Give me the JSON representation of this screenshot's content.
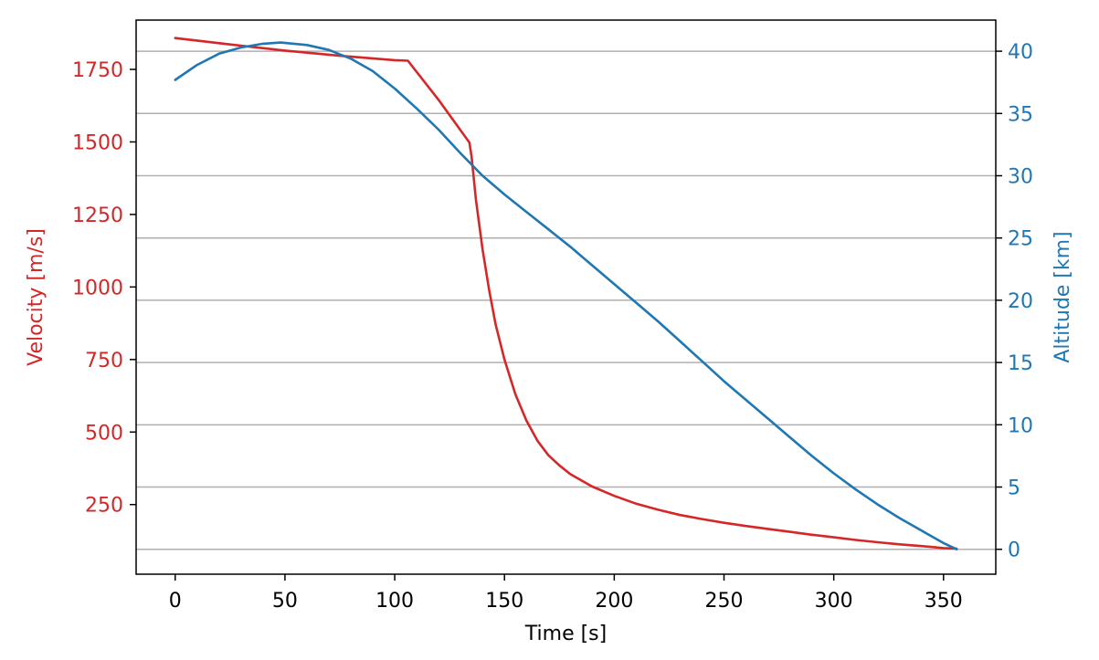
{
  "chart_data": {
    "type": "line",
    "xlabel": "Time [s]",
    "ylabel_left": "Velocity [m/s]",
    "ylabel_right": "Altitude [km]",
    "xlim": [
      -17.8,
      373.8
    ],
    "ylim_left": [
      10,
      1920
    ],
    "ylim_right": [
      -2,
      42.5
    ],
    "x_ticks": [
      0,
      50,
      100,
      150,
      200,
      250,
      300,
      350
    ],
    "y_left_ticks": [
      250,
      500,
      750,
      1000,
      1250,
      1500,
      1750
    ],
    "y_right_ticks": [
      0,
      5,
      10,
      15,
      20,
      25,
      30,
      35,
      40
    ],
    "grid": "horizontal lines at right-axis ticks",
    "left_axis_color": "#d62728",
    "right_axis_color": "#1f77b4",
    "series": [
      {
        "axis": "left",
        "color": "#d62728",
        "x": [
          0,
          25,
          50,
          75,
          100,
          106,
          120,
          134,
          135,
          137,
          140,
          143,
          146,
          150,
          155,
          160,
          165,
          170,
          175,
          180,
          190,
          200,
          210,
          220,
          230,
          240,
          250,
          260,
          270,
          280,
          290,
          300,
          310,
          320,
          330,
          340,
          350,
          356
        ],
        "values": [
          1858,
          1836,
          1815,
          1797,
          1782,
          1780,
          1645,
          1498,
          1450,
          1300,
          1130,
          990,
          870,
          750,
          630,
          540,
          470,
          420,
          385,
          355,
          312,
          280,
          253,
          232,
          214,
          200,
          187,
          176,
          166,
          156,
          146,
          137,
          128,
          120,
          113,
          107,
          100,
          98
        ]
      },
      {
        "axis": "right",
        "color": "#1f77b4",
        "x": [
          0,
          10,
          20,
          30,
          40,
          48,
          60,
          70,
          80,
          90,
          100,
          110,
          120,
          130,
          140,
          150,
          160,
          170,
          180,
          190,
          200,
          210,
          220,
          230,
          240,
          250,
          260,
          270,
          280,
          290,
          300,
          310,
          320,
          330,
          340,
          350,
          356
        ],
        "values": [
          37.7,
          38.9,
          39.8,
          40.3,
          40.6,
          40.7,
          40.5,
          40.1,
          39.4,
          38.4,
          37.0,
          35.4,
          33.7,
          31.8,
          30.0,
          28.5,
          27.1,
          25.7,
          24.3,
          22.8,
          21.3,
          19.8,
          18.3,
          16.7,
          15.1,
          13.5,
          12.0,
          10.5,
          9.0,
          7.5,
          6.1,
          4.8,
          3.6,
          2.5,
          1.5,
          0.5,
          0.0
        ]
      }
    ]
  }
}
